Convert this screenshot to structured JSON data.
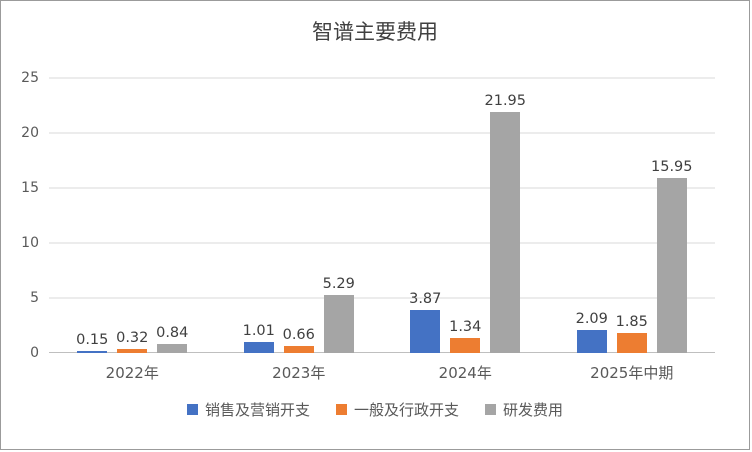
{
  "chart_data": {
    "type": "bar",
    "title": "智谱主要费用",
    "categories": [
      "2022年",
      "2023年",
      "2024年",
      "2025年中期"
    ],
    "series": [
      {
        "name": "销售及营销开支",
        "color": "#4472C4",
        "values": [
          0.15,
          1.01,
          3.87,
          2.09
        ]
      },
      {
        "name": "一般及行政开支",
        "color": "#ED7D31",
        "values": [
          0.32,
          0.66,
          1.34,
          1.85
        ]
      },
      {
        "name": "研发费用",
        "color": "#A5A5A5",
        "values": [
          0.84,
          5.29,
          21.95,
          15.95
        ]
      }
    ],
    "xlabel": "",
    "ylabel": "",
    "ylim": [
      0,
      25
    ],
    "yticks": [
      0,
      5,
      10,
      15,
      20,
      25
    ],
    "grid": true,
    "legend_position": "bottom",
    "value_label_decimals": 2
  }
}
